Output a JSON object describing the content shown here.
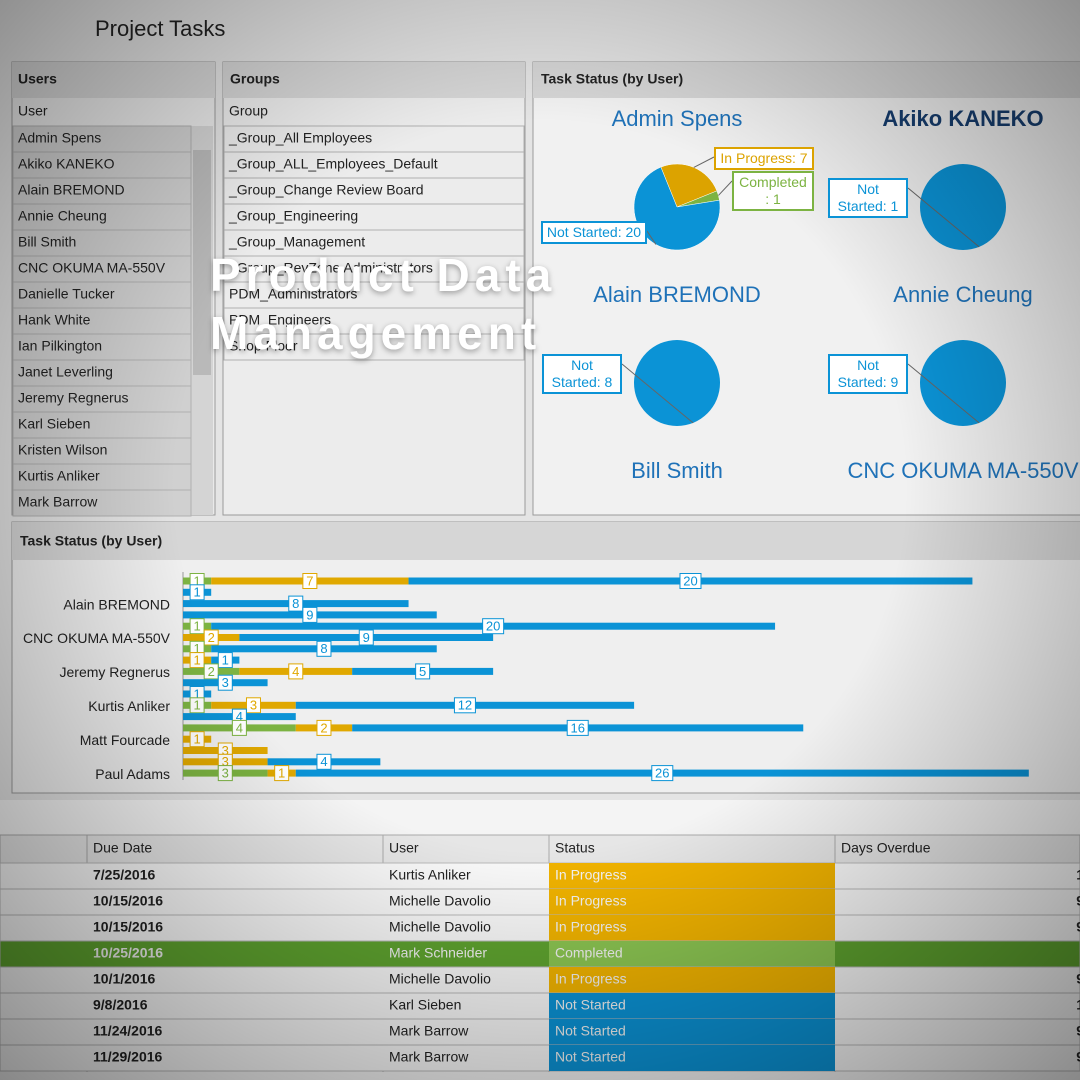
{
  "window_title": "Project Tasks",
  "overlay_title": "Product Data Management",
  "users_panel": {
    "title": "Users",
    "column": "User",
    "items": [
      "Admin Spens",
      "Akiko KANEKO",
      "Alain BREMOND",
      "Annie Cheung",
      "Bill Smith",
      "CNC OKUMA MA-550V",
      "Danielle Tucker",
      "Hank White",
      "Ian Pilkington",
      "Janet Leverling",
      "Jeremy Regnerus",
      "Karl Sieben",
      "Kristen Wilson",
      "Kurtis Anliker",
      "Mark Barrow"
    ]
  },
  "groups_panel": {
    "title": "Groups",
    "column": "Group",
    "items": [
      "_Group_All Employees",
      "_Group_ALL_Employees_Default",
      "_Group_Change Review Board",
      "_Group_Engineering",
      "_Group_Management",
      "_Group_RevZone Administrators",
      "PDM_Administrators",
      "PDM_Engineers",
      "Shop Floor"
    ]
  },
  "pie_panel": {
    "title": "Task Status (by User)",
    "users": [
      {
        "name": "Admin Spens",
        "slices": [
          {
            "value": 7,
            "label": "In Progress: 7",
            "color": "#dca300"
          },
          {
            "value": 1,
            "label": "Completed : 1",
            "color": "#7cb342"
          },
          {
            "value": 20,
            "label": "Not Started: 20",
            "color": "#0b93d6"
          }
        ]
      },
      {
        "name": "Akiko KANEKO",
        "slices": [
          {
            "value": 1,
            "label": "Not Started: 1",
            "color": "#0b93d6"
          }
        ]
      },
      {
        "name": "Alain BREMOND",
        "slices": [
          {
            "value": 8,
            "label": "Not Started: 8",
            "color": "#0b93d6"
          }
        ]
      },
      {
        "name": "Annie Cheung",
        "slices": [
          {
            "value": 9,
            "label": "Not Started: 9",
            "color": "#0b93d6"
          }
        ]
      },
      {
        "name": "Bill Smith"
      },
      {
        "name": "CNC OKUMA MA-550V"
      }
    ]
  },
  "chart_data": {
    "type": "bar",
    "orientation": "horizontal",
    "stacked": true,
    "title": "Task Status (by User)",
    "categories": [
      null,
      null,
      "Alain BREMOND",
      null,
      null,
      "CNC OKUMA MA-550V",
      null,
      null,
      "Jeremy Regnerus",
      null,
      null,
      "Kurtis Anliker",
      null,
      null,
      "Matt Fourcade",
      null,
      null,
      "Paul Adams"
    ],
    "xlim": [
      0,
      31
    ],
    "series": [
      {
        "color": "#7cb342",
        "values": [
          1,
          null,
          null,
          null,
          1,
          null,
          1,
          null,
          2,
          null,
          null,
          1,
          null,
          4,
          null,
          null,
          null,
          3
        ]
      },
      {
        "color": "#e0a800",
        "values": [
          7,
          null,
          null,
          null,
          null,
          2,
          null,
          1,
          4,
          null,
          null,
          3,
          null,
          2,
          1,
          3,
          3,
          1
        ]
      },
      {
        "color": "#0b93d6",
        "values": [
          20,
          1,
          8,
          9,
          20,
          9,
          8,
          1,
          5,
          3,
          1,
          12,
          4,
          16,
          null,
          null,
          4,
          26
        ]
      }
    ]
  },
  "table": {
    "columns": [
      "Due Date",
      "User",
      "Status",
      "Days Overdue"
    ],
    "rows": [
      {
        "due_date": "7/25/2016",
        "user": "Kurtis Anliker",
        "status": "In Progress",
        "days_overdue": 1,
        "color": "#f2b400"
      },
      {
        "due_date": "10/15/2016",
        "user": "Michelle Davolio",
        "status": "In Progress",
        "days_overdue": 9,
        "color": "#f2b400"
      },
      {
        "due_date": "10/15/2016",
        "user": "Michelle Davolio",
        "status": "In Progress",
        "days_overdue": 9,
        "color": "#f2b400"
      },
      {
        "due_date": "10/25/2016",
        "user": "Mark Schneider",
        "status": "Completed",
        "days_overdue": null,
        "color": "#7cb342",
        "selected": true
      },
      {
        "due_date": "10/1/2016",
        "user": "Michelle Davolio",
        "status": "In Progress",
        "days_overdue": 9,
        "color": "#f2b400"
      },
      {
        "due_date": "9/8/2016",
        "user": "Karl Sieben",
        "status": "Not Started",
        "days_overdue": 1,
        "color": "#0b93d6"
      },
      {
        "due_date": "11/24/2016",
        "user": "Mark Barrow",
        "status": "Not Started",
        "days_overdue": 9,
        "color": "#0b93d6"
      },
      {
        "due_date": "11/29/2016",
        "user": "Mark Barrow",
        "status": "Not Started",
        "days_overdue": 9,
        "color": "#0b93d6"
      }
    ]
  }
}
